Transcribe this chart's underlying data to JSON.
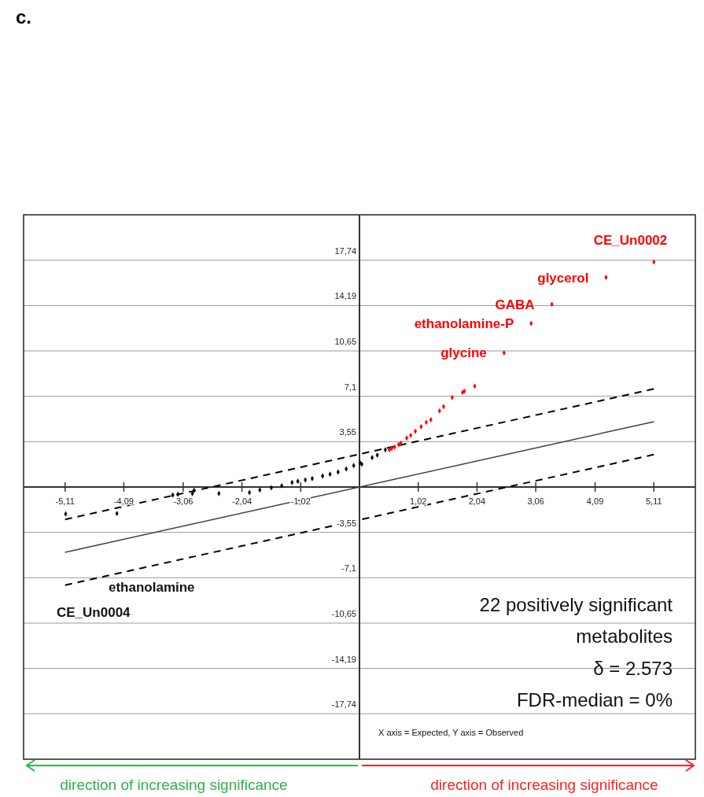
{
  "chart_data": {
    "type": "scatter",
    "title": "c.",
    "xlim": [
      -5.83,
      5.83
    ],
    "ylim": [
      -21.3,
      21.3
    ],
    "xticks": [
      {
        "value": -5.11,
        "label": "-5,11"
      },
      {
        "value": -4.09,
        "label": "-4,09"
      },
      {
        "value": -3.06,
        "label": "-3,06"
      },
      {
        "value": -2.04,
        "label": "-2,04"
      },
      {
        "value": -1.02,
        "label": "-1,02"
      },
      {
        "value": 1.02,
        "label": "1,02"
      },
      {
        "value": 2.04,
        "label": "2,04"
      },
      {
        "value": 3.06,
        "label": "3,06"
      },
      {
        "value": 4.09,
        "label": "4,09"
      },
      {
        "value": 5.11,
        "label": "5,11"
      }
    ],
    "yticks": [
      {
        "value": -17.74,
        "label": "-17,74"
      },
      {
        "value": -14.19,
        "label": "-14,19"
      },
      {
        "value": -10.65,
        "label": "-10,65"
      },
      {
        "value": -7.1,
        "label": "-7,1"
      },
      {
        "value": -3.55,
        "label": "-3,55"
      },
      {
        "value": 3.55,
        "label": "3,55"
      },
      {
        "value": 7.1,
        "label": "7,1"
      },
      {
        "value": 10.65,
        "label": "10,65"
      },
      {
        "value": 14.19,
        "label": "14,19"
      },
      {
        "value": 17.74,
        "label": "17,74"
      }
    ],
    "grid": "y",
    "marker": "diamond",
    "series": [
      {
        "type": "line",
        "color": "#404040",
        "line_style": "solid",
        "marker": "none",
        "x": [
          -5.11,
          5.11
        ],
        "values": [
          -5.11,
          5.11
        ]
      },
      {
        "type": "line",
        "color": "#000000",
        "line_style": "dashed",
        "marker": "none",
        "x": [
          -5.11,
          5.11
        ],
        "values": [
          -2.54,
          7.68
        ]
      },
      {
        "type": "line",
        "color": "#000000",
        "line_style": "dashed",
        "marker": "none",
        "x": [
          -5.11,
          5.11
        ],
        "values": [
          -7.68,
          2.54
        ]
      },
      {
        "color": "#000000",
        "x": [
          -5.1,
          -4.21,
          -3.24,
          -3.15,
          -2.9,
          -2.87,
          -2.44,
          -1.91,
          -1.73,
          -1.53,
          -1.35,
          -1.17,
          -1.07,
          -0.94,
          -0.82,
          -0.64,
          -0.51,
          -0.37,
          -0.23,
          -0.1,
          0.01,
          0.04,
          0.22,
          0.31,
          0.45
        ],
        "values": [
          -2.11,
          -2.07,
          -0.63,
          -0.57,
          -0.51,
          -0.26,
          -0.51,
          -0.43,
          -0.23,
          -0.06,
          0.1,
          0.35,
          0.45,
          0.55,
          0.66,
          0.86,
          1.0,
          1.17,
          1.42,
          1.68,
          1.89,
          1.78,
          2.3,
          2.5,
          2.91
        ]
      },
      {
        "color": "#ff0000",
        "x": [
          5.11,
          4.28,
          3.34,
          2.98,
          2.51,
          2.0,
          1.82,
          1.79,
          1.61,
          1.46,
          1.39,
          1.24,
          1.16,
          1.07,
          0.97,
          0.89,
          0.82,
          0.72,
          0.68,
          0.61,
          0.56,
          0.52
        ],
        "values": [
          17.6,
          16.4,
          14.3,
          12.8,
          10.5,
          7.9,
          7.5,
          7.4,
          7.0,
          6.3,
          5.95,
          5.27,
          5.07,
          4.72,
          4.35,
          4.04,
          3.83,
          3.43,
          3.32,
          3.12,
          3.02,
          2.91
        ]
      }
    ],
    "annotations": [
      {
        "text": "CE_Un0002",
        "x": 5.11,
        "y": 17.6
      },
      {
        "text": "glycerol",
        "x": 4.28,
        "y": 16.4
      },
      {
        "text": "GABA",
        "x": 3.34,
        "y": 14.3
      },
      {
        "text": "ethanolamine-P",
        "x": 2.98,
        "y": 12.8
      },
      {
        "text": "glycine",
        "x": 2.51,
        "y": 10.5
      },
      "ethanolamine",
      "CE_Un0004",
      "22 positively significant metabolites",
      "δ = 2.573",
      "FDR-median = 0%",
      "X axis = Expected, Y axis = Observed",
      "direction of increasing significance",
      "direction of increasing significance"
    ]
  }
}
